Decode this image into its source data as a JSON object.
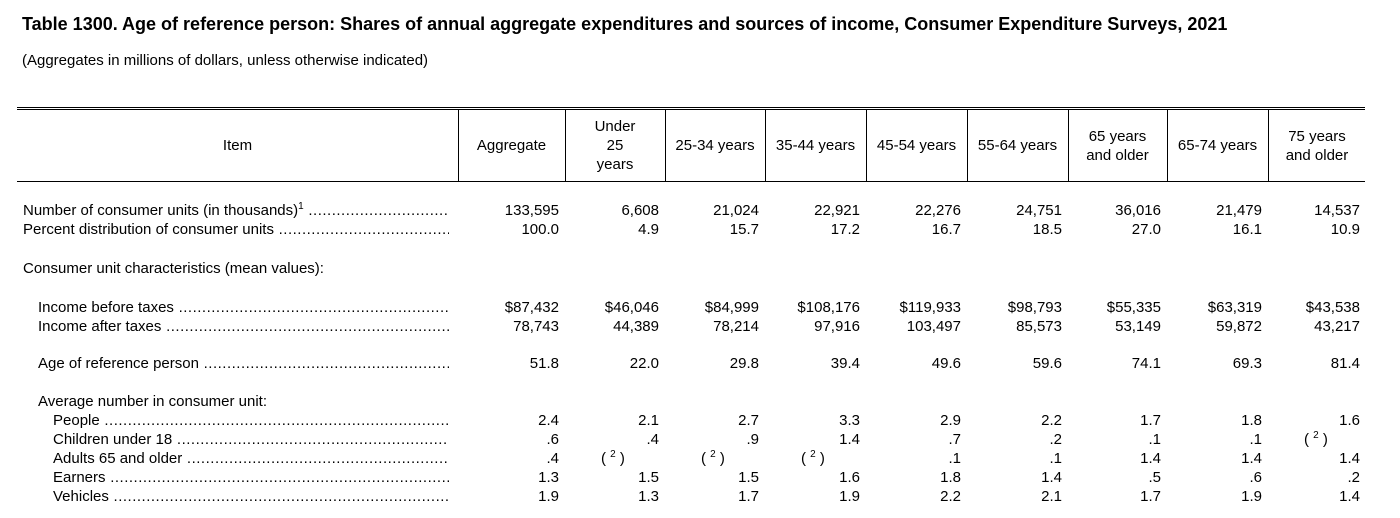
{
  "title": "Table 1300. Age of reference person: Shares of annual aggregate expenditures and sources of income, Consumer Expenditure Surveys, 2021",
  "subtitle": "(Aggregates in millions of dollars, unless otherwise indicated)",
  "columns": [
    "Item",
    "Aggregate",
    "Under 25 years",
    "25-34 years",
    "35-44 years",
    "45-54 years",
    "55-64 years",
    "65 years and older",
    "65-74 years",
    "75 years and older"
  ],
  "rows": [
    {
      "label": "Number of consumer units (in thousands)",
      "footnote": "1",
      "indent": 0,
      "values": [
        "133,595",
        "6,608",
        "21,024",
        "22,921",
        "22,276",
        "24,751",
        "36,016",
        "21,479",
        "14,537"
      ]
    },
    {
      "label": "Percent distribution of consumer units",
      "indent": 0,
      "values": [
        "100.0",
        "4.9",
        "15.7",
        "17.2",
        "16.7",
        "18.5",
        "27.0",
        "16.1",
        "10.9"
      ]
    },
    {
      "label": "Consumer unit characteristics (mean values):",
      "indent": 0,
      "section": true,
      "values": []
    },
    {
      "label": "Income before taxes",
      "indent": 1,
      "values": [
        "$87,432",
        "$46,046",
        "$84,999",
        "$108,176",
        "$119,933",
        "$98,793",
        "$55,335",
        "$63,319",
        "$43,538"
      ]
    },
    {
      "label": "Income after taxes",
      "indent": 1,
      "values": [
        "78,743",
        "44,389",
        "78,214",
        "97,916",
        "103,497",
        "85,573",
        "53,149",
        "59,872",
        "43,217"
      ]
    },
    {
      "label": "Age of reference person",
      "indent": 1,
      "values": [
        "51.8",
        "22.0",
        "29.8",
        "39.4",
        "49.6",
        "59.6",
        "74.1",
        "69.3",
        "81.4"
      ]
    },
    {
      "label": "Average number in consumer unit:",
      "indent": 1,
      "section": true,
      "values": []
    },
    {
      "label": "People",
      "indent": 2,
      "values": [
        "2.4",
        "2.1",
        "2.7",
        "3.3",
        "2.9",
        "2.2",
        "1.7",
        "1.8",
        "1.6"
      ]
    },
    {
      "label": "Children under 18",
      "indent": 2,
      "values": [
        ".6",
        ".4",
        ".9",
        "1.4",
        ".7",
        ".2",
        ".1",
        ".1",
        "( 2 )"
      ]
    },
    {
      "label": "Adults 65 and older",
      "indent": 2,
      "values": [
        ".4",
        "( 2 )",
        "( 2 )",
        "( 2 )",
        ".1",
        ".1",
        "1.4",
        "1.4",
        "1.4"
      ]
    },
    {
      "label": "Earners",
      "indent": 2,
      "values": [
        "1.3",
        "1.5",
        "1.5",
        "1.6",
        "1.8",
        "1.4",
        ".5",
        ".6",
        ".2"
      ]
    },
    {
      "label": "Vehicles",
      "indent": 2,
      "values": [
        "1.9",
        "1.3",
        "1.7",
        "1.9",
        "2.2",
        "2.1",
        "1.7",
        "1.9",
        "1.4"
      ]
    }
  ]
}
